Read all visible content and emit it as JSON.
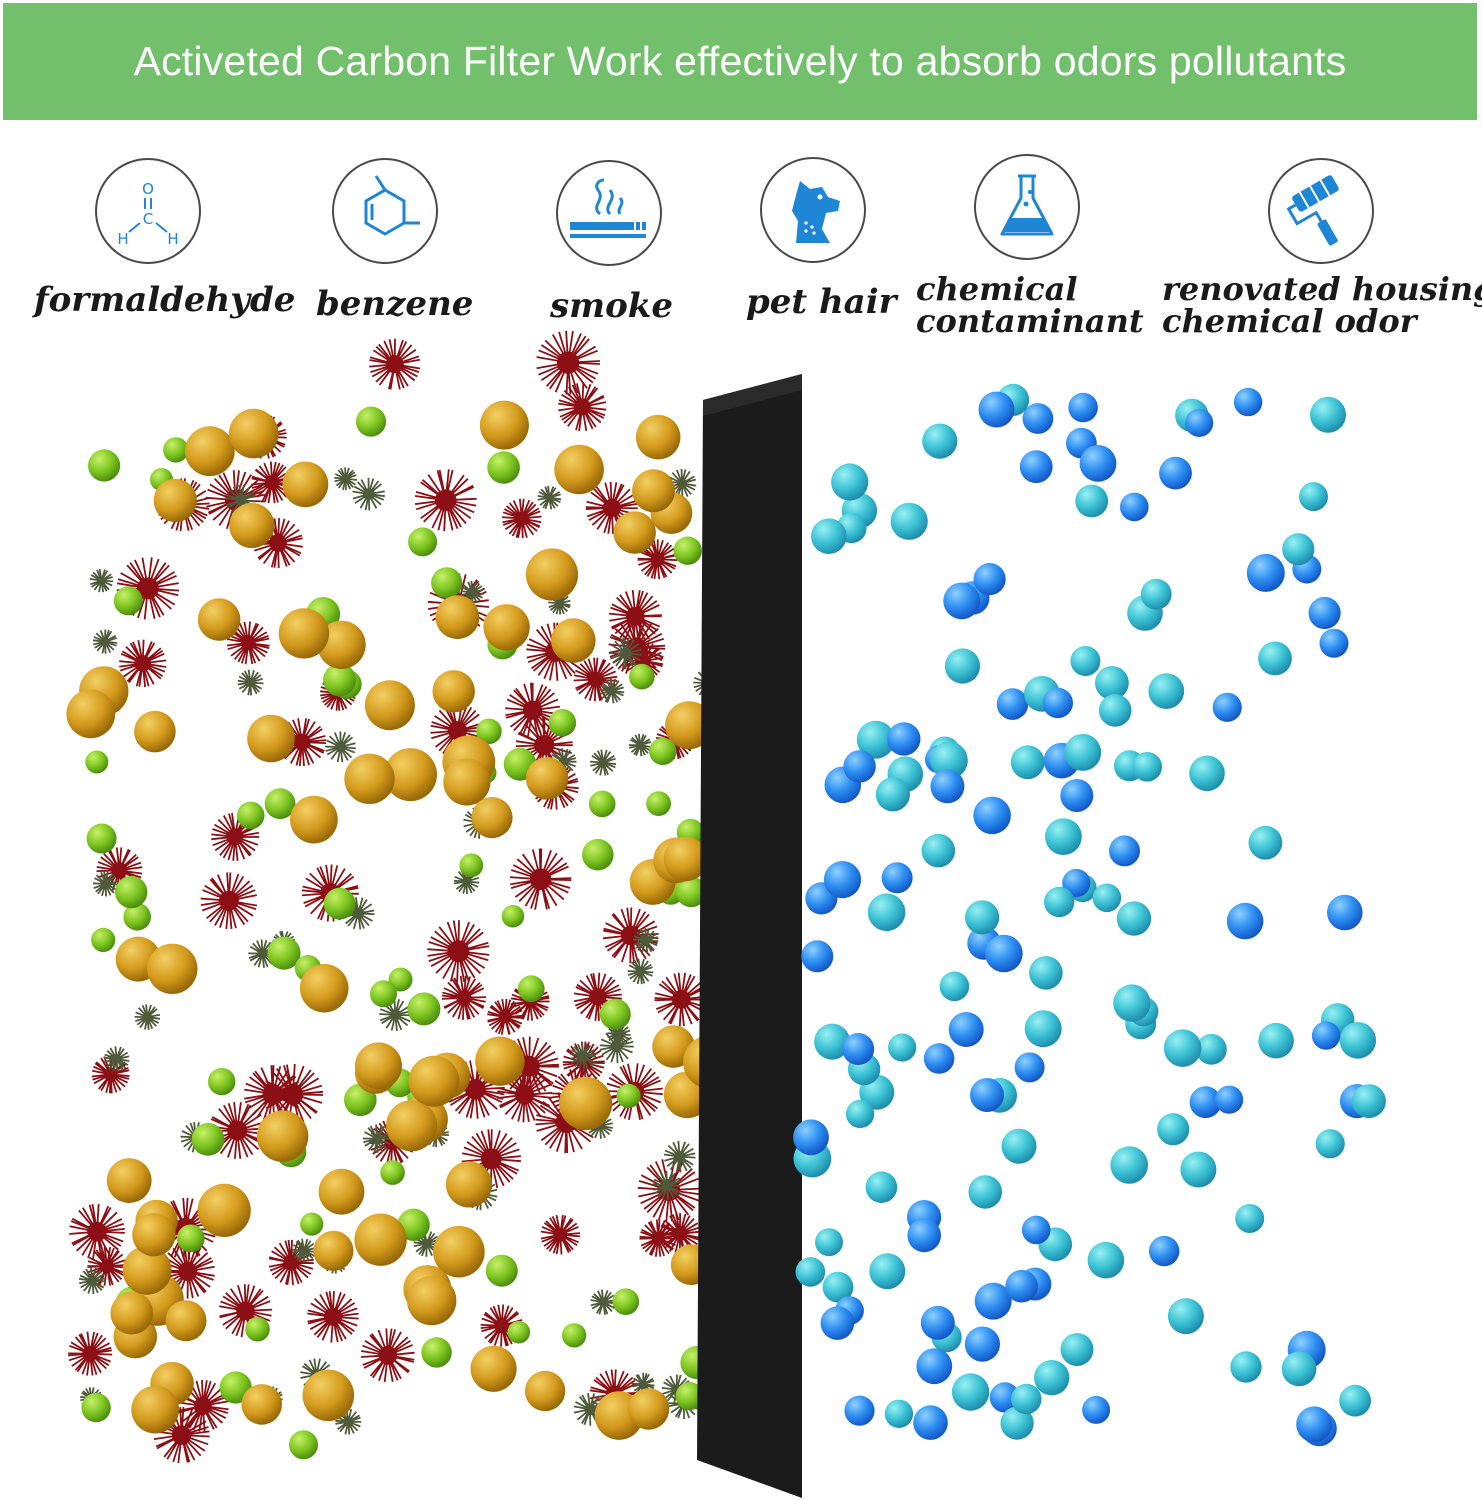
{
  "banner": {
    "title": "Activeted Carbon Filter Work effectively to absorb odors pollutants"
  },
  "pollutants": [
    {
      "label": "formaldehyde",
      "icon": "formaldehyde-molecule-icon"
    },
    {
      "label": "benzene",
      "icon": "benzene-ring-icon"
    },
    {
      "label": "smoke",
      "icon": "cigarette-smoke-icon"
    },
    {
      "label": "pet hair",
      "icon": "dog-head-icon"
    },
    {
      "label_line1": "chemical",
      "label_line2": "contaminant",
      "icon": "flask-icon"
    },
    {
      "label_line1": "renovated housing",
      "label_line2": "chemical odor",
      "icon": "paint-roller-icon"
    }
  ],
  "formaldehyde_atoms": {
    "o": "O",
    "c": "C",
    "h": "H"
  },
  "colors": {
    "banner": "#72c06c",
    "icon_blue": "#1f86d6",
    "filter": "#1c1c1c",
    "spiky": "#8b0f14",
    "gold": "#c9900f",
    "green": "#86cc2a",
    "dark_spore": "#4e5a3a",
    "clean_blue": "#2b8ef0",
    "clean_cyan": "#3cc4d8"
  }
}
